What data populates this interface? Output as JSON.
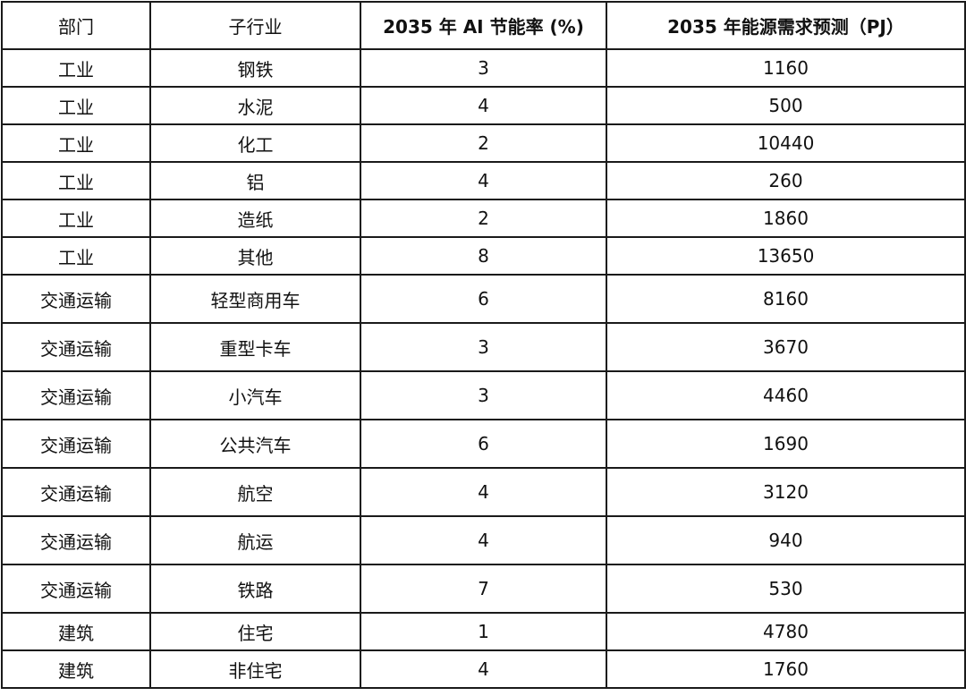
{
  "table": {
    "headers": [
      "部门",
      "子行业",
      "2035 年 AI 节能率 (%)",
      "2035 年能源需求预测（PJ）"
    ],
    "rows": [
      {
        "sector": "工业",
        "subsector": "钢铁",
        "ai_saving": "3",
        "demand": "1160"
      },
      {
        "sector": "工业",
        "subsector": "水泥",
        "ai_saving": "4",
        "demand": "500"
      },
      {
        "sector": "工业",
        "subsector": "化工",
        "ai_saving": "2",
        "demand": "10440"
      },
      {
        "sector": "工业",
        "subsector": "铝",
        "ai_saving": "4",
        "demand": "260"
      },
      {
        "sector": "工业",
        "subsector": "造纸",
        "ai_saving": "2",
        "demand": "1860"
      },
      {
        "sector": "工业",
        "subsector": "其他",
        "ai_saving": "8",
        "demand": "13650"
      },
      {
        "sector": "交通运输",
        "subsector": "轻型商用车",
        "ai_saving": "6",
        "demand": "8160"
      },
      {
        "sector": "交通运输",
        "subsector": "重型卡车",
        "ai_saving": "3",
        "demand": "3670"
      },
      {
        "sector": "交通运输",
        "subsector": "小汽车",
        "ai_saving": "3",
        "demand": "4460"
      },
      {
        "sector": "交通运输",
        "subsector": "公共汽车",
        "ai_saving": "6",
        "demand": "1690"
      },
      {
        "sector": "交通运输",
        "subsector": "航空",
        "ai_saving": "4",
        "demand": "3120"
      },
      {
        "sector": "交通运输",
        "subsector": "航运",
        "ai_saving": "4",
        "demand": "940"
      },
      {
        "sector": "交通运输",
        "subsector": "铁路",
        "ai_saving": "7",
        "demand": "530"
      },
      {
        "sector": "建筑",
        "subsector": "住宅",
        "ai_saving": "1",
        "demand": "4780"
      },
      {
        "sector": "建筑",
        "subsector": "非住宅",
        "ai_saving": "4",
        "demand": "1760"
      }
    ]
  }
}
